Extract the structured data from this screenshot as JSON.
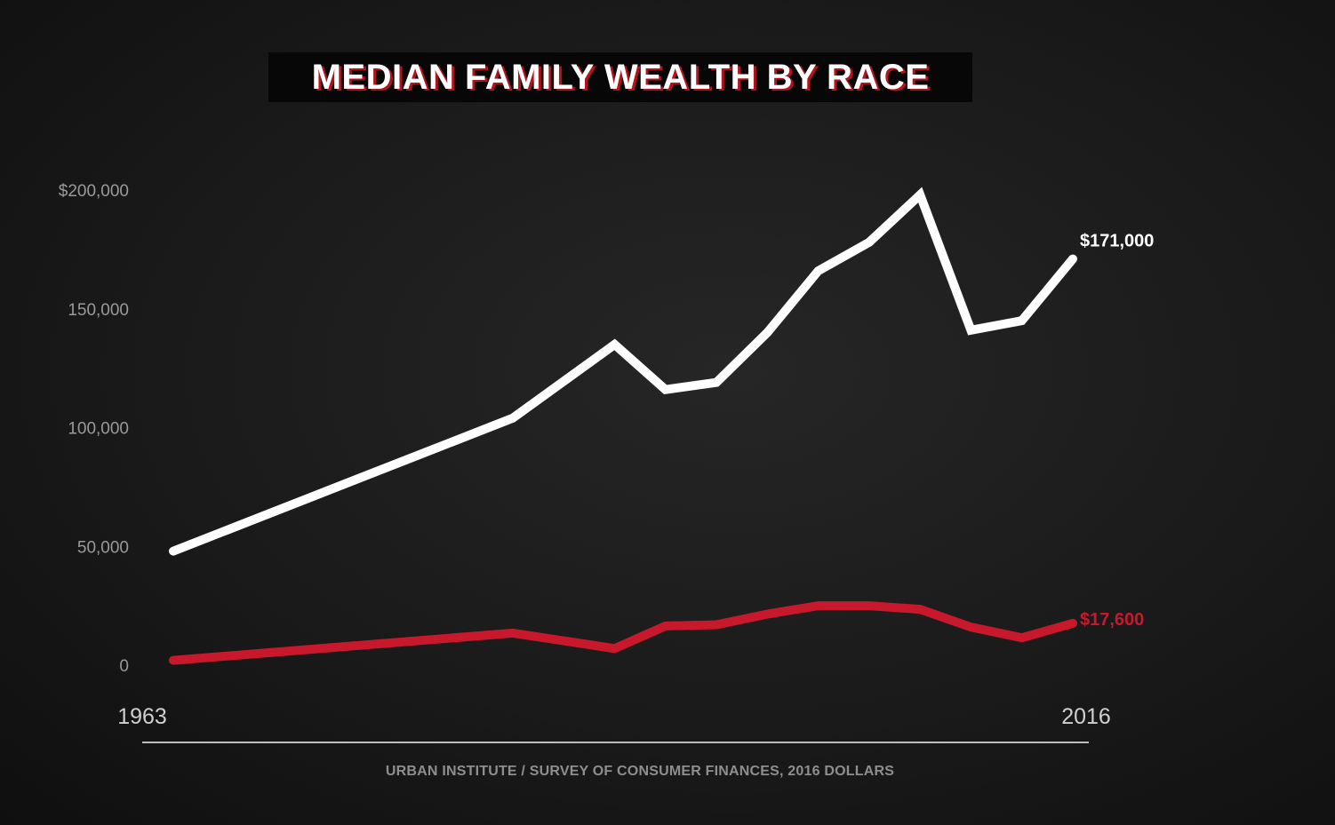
{
  "chart_data": {
    "type": "line",
    "title": "MEDIAN FAMILY WEALTH BY RACE",
    "source": "URBAN INSTITUTE / SURVEY OF CONSUMER FINANCES, 2016 DOLLARS",
    "x_start_label": "1963",
    "x_end_label": "2016",
    "xlim": [
      1963,
      2016
    ],
    "ylim": [
      0,
      200000
    ],
    "yticks": [
      0,
      50000,
      100000,
      150000,
      200000
    ],
    "ytick_labels": [
      "0",
      "50,000",
      "100,000",
      "150,000",
      "$200,000"
    ],
    "grid": false,
    "legend": "none",
    "series": [
      {
        "color": "#ffffff",
        "end_label": "$171,000",
        "points": [
          [
            1963,
            48000
          ],
          [
            1983,
            104000
          ],
          [
            1989,
            135000
          ],
          [
            1992,
            116000
          ],
          [
            1995,
            119000
          ],
          [
            1998,
            140000
          ],
          [
            2001,
            166000
          ],
          [
            2004,
            178000
          ],
          [
            2007,
            198000
          ],
          [
            2010,
            141000
          ],
          [
            2013,
            145000
          ],
          [
            2016,
            171000
          ]
        ]
      },
      {
        "color": "#c8192c",
        "end_label": "$17,600",
        "points": [
          [
            1963,
            2000
          ],
          [
            1983,
            13500
          ],
          [
            1989,
            7000
          ],
          [
            1992,
            16500
          ],
          [
            1995,
            17000
          ],
          [
            1998,
            21500
          ],
          [
            2001,
            25000
          ],
          [
            2004,
            25000
          ],
          [
            2007,
            23500
          ],
          [
            2010,
            16000
          ],
          [
            2013,
            11500
          ],
          [
            2016,
            17600
          ]
        ]
      }
    ]
  }
}
